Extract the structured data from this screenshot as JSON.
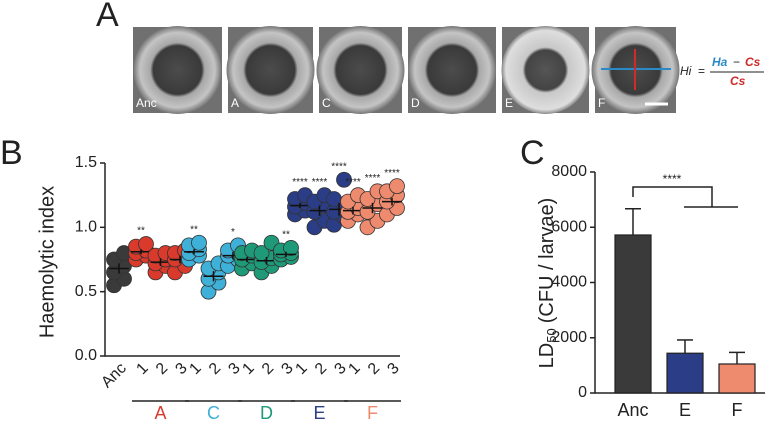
{
  "panels": [
    "A",
    "B",
    "C"
  ],
  "image_labels": [
    "Anc",
    "A",
    "C",
    "D",
    "E",
    "F"
  ],
  "formula": {
    "lhs": "Hi",
    "eq": "=",
    "num_a": "Ha",
    "minus": "−",
    "num_b": "Cs",
    "den": "Cs"
  },
  "chart_data": [
    {
      "type": "dot",
      "ylabel": "Haemolytic index",
      "ylim": [
        0,
        1.5
      ],
      "yticks": [
        {
          "value": 0,
          "label": "0.0"
        },
        {
          "value": 0.5,
          "label": "0.5"
        },
        {
          "value": 1,
          "label": "1.0"
        },
        {
          "value": 1.5,
          "label": "1.5"
        }
      ],
      "groups": [
        {
          "color": "#3a3a3a",
          "categories": [
            "Anc"
          ],
          "points": [
            [
              0.55,
              0.6,
              0.65,
              0.7,
              0.75,
              0.8
            ]
          ],
          "means": [
            0.68
          ],
          "errors": [
            0.04
          ],
          "significance": [
            null
          ]
        },
        {
          "name": "A",
          "color": "#d93a2c",
          "categories": [
            "1",
            "2",
            "3"
          ],
          "points": [
            [
              0.75,
              0.78,
              0.8,
              0.82,
              0.85,
              0.87
            ],
            [
              0.65,
              0.7,
              0.72,
              0.75,
              0.78,
              0.8
            ],
            [
              0.65,
              0.7,
              0.75,
              0.78,
              0.8,
              0.82
            ]
          ],
          "means": [
            0.81,
            0.73,
            0.75
          ],
          "errors": [
            0.02,
            0.03,
            0.03
          ],
          "significance": [
            "**",
            null,
            null
          ]
        },
        {
          "name": "C",
          "color": "#3fb0d8",
          "categories": [
            "1",
            "2",
            "3"
          ],
          "points": [
            [
              0.75,
              0.78,
              0.8,
              0.83,
              0.86,
              0.88
            ],
            [
              0.5,
              0.57,
              0.6,
              0.65,
              0.68,
              0.72
            ],
            [
              0.7,
              0.75,
              0.78,
              0.8,
              0.82,
              0.86
            ]
          ],
          "means": [
            0.81,
            0.62,
            0.78
          ],
          "errors": [
            0.02,
            0.04,
            0.03
          ],
          "significance": [
            "**",
            null,
            "*"
          ]
        },
        {
          "name": "D",
          "color": "#1f9a78",
          "categories": [
            "1",
            "2",
            "3"
          ],
          "points": [
            [
              0.68,
              0.72,
              0.75,
              0.78,
              0.8,
              0.82
            ],
            [
              0.65,
              0.7,
              0.73,
              0.76,
              0.8,
              0.88
            ],
            [
              0.75,
              0.77,
              0.79,
              0.8,
              0.82,
              0.84
            ]
          ],
          "means": [
            0.75,
            0.74,
            0.79
          ],
          "errors": [
            0.02,
            0.03,
            0.02
          ],
          "significance": [
            null,
            null,
            "**"
          ]
        },
        {
          "name": "E",
          "color": "#2b3d86",
          "categories": [
            "1",
            "2",
            "3"
          ],
          "points": [
            [
              1.1,
              1.13,
              1.16,
              1.19,
              1.22,
              1.25
            ],
            [
              1.0,
              1.05,
              1.12,
              1.17,
              1.2,
              1.25
            ],
            [
              1.02,
              1.08,
              1.12,
              1.17,
              1.22,
              1.37
            ]
          ],
          "means": [
            1.17,
            1.13,
            1.14
          ],
          "errors": [
            0.02,
            0.04,
            0.05
          ],
          "significance": [
            "****",
            "****",
            "****"
          ]
        },
        {
          "name": "F",
          "color": "#ee8a6e",
          "categories": [
            "1",
            "2",
            "3"
          ],
          "points": [
            [
              1.05,
              1.1,
              1.12,
              1.15,
              1.2,
              1.25
            ],
            [
              1.0,
              1.05,
              1.12,
              1.18,
              1.22,
              1.28
            ],
            [
              1.1,
              1.15,
              1.2,
              1.25,
              1.28,
              1.32
            ]
          ],
          "means": [
            1.13,
            1.15,
            1.2
          ],
          "errors": [
            0.03,
            0.04,
            0.03
          ],
          "significance": [
            "****",
            "****",
            "****"
          ]
        }
      ]
    },
    {
      "type": "bar",
      "ylabel": {
        "main": "LD",
        "subscript": "50",
        "unit": "(CFU / larvae)"
      },
      "categories": [
        "Anc",
        "E",
        "F"
      ],
      "values": [
        5720,
        1440,
        1050
      ],
      "errors": [
        950,
        480,
        420
      ],
      "colors": [
        "#3a3a3a",
        "#2b3d86",
        "#ee8a6e"
      ],
      "ylim": [
        0,
        8000
      ],
      "yticks": [
        0,
        2000,
        4000,
        6000,
        8000
      ],
      "significance": "****"
    }
  ]
}
